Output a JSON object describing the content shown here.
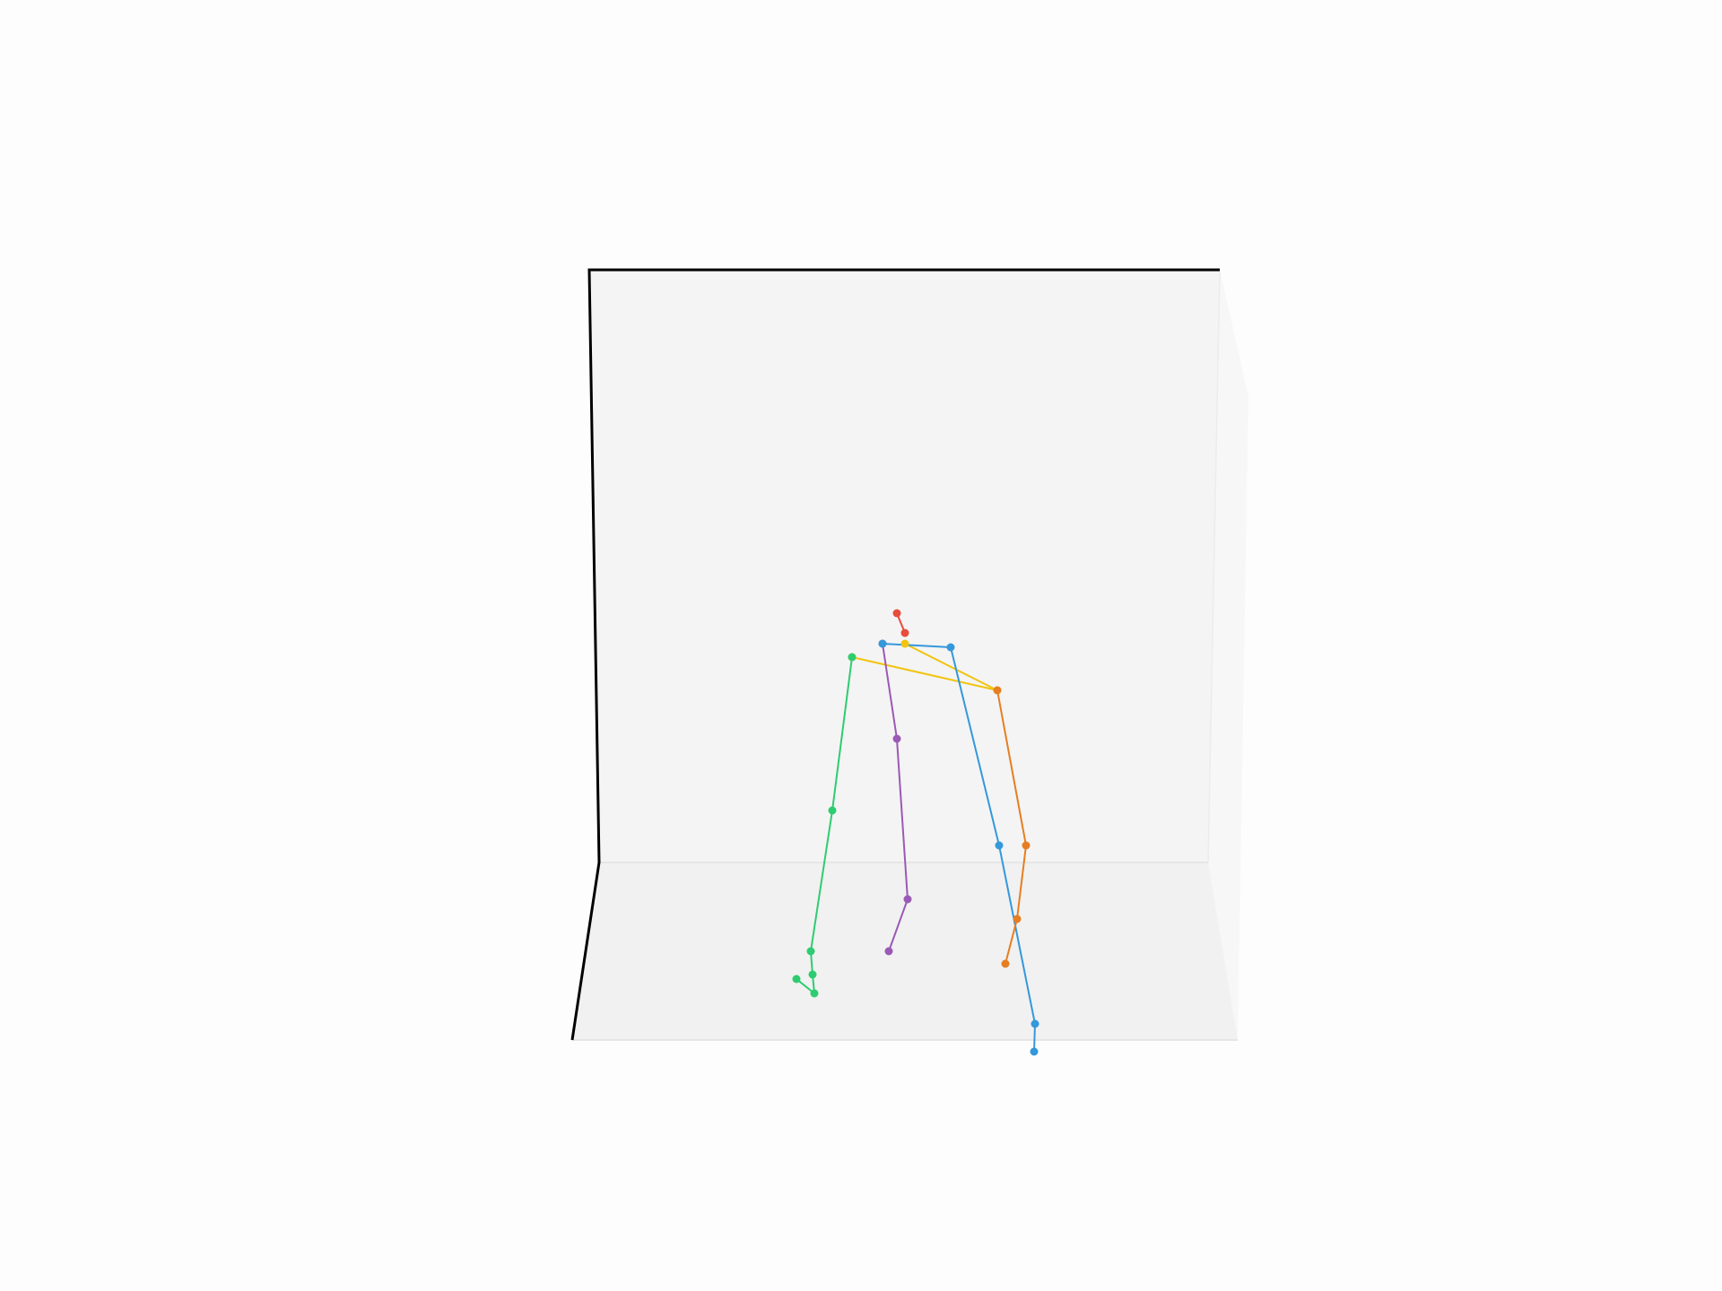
{
  "figure": {
    "type": "3d-skeleton-plot",
    "background_color": "#fdfdfd",
    "wall_color": "#f4f4f4",
    "floor_color": "#f1f1f1",
    "side_wall_color": "#f7f7f7",
    "axis_color": "#000000",
    "grid": false
  },
  "skeleton": {
    "joint_count": 25,
    "limbs": [
      {
        "id": "head",
        "color": "#e74c3c",
        "joint_count": 2
      },
      {
        "id": "torso-shoulders",
        "color": "#f1c40f",
        "joint_count": 3
      },
      {
        "id": "right-arm",
        "color": "#2ecc71",
        "joint_count": 6
      },
      {
        "id": "spine-left-leg",
        "color": "#9b59b6",
        "joint_count": 4
      },
      {
        "id": "pelvis-right-leg",
        "color": "#3498db",
        "joint_count": 5
      },
      {
        "id": "left-arm",
        "color": "#e67e22",
        "joint_count": 5
      }
    ]
  }
}
